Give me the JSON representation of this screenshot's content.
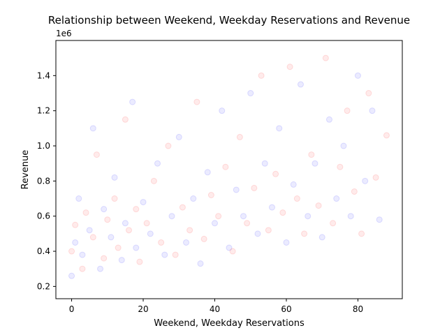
{
  "chart_data": {
    "type": "scatter",
    "title": "Relationship between Weekend, Weekday Reservations and Revenue",
    "xlabel": "Weekend, Weekday Reservations",
    "ylabel": "Revenue",
    "y_offset_label": "1e6",
    "xlim": [
      -4.4,
      92.4
    ],
    "ylim": [
      130000,
      1600000
    ],
    "x_ticks": [
      0,
      20,
      40,
      60,
      80
    ],
    "x_tick_labels": [
      "0",
      "20",
      "40",
      "60",
      "80"
    ],
    "y_ticks": [
      200000,
      400000,
      600000,
      800000,
      1000000,
      1200000,
      1400000
    ],
    "y_tick_labels": [
      "0.2",
      "0.4",
      "0.6",
      "0.8",
      "1.0",
      "1.2",
      "1.4"
    ],
    "grid": false,
    "legend": "none",
    "marker_alpha": 0.08,
    "series": [
      {
        "color": "#0000ff",
        "x": [
          0,
          1,
          2,
          3,
          5,
          6,
          8,
          9,
          11,
          12,
          14,
          15,
          17,
          18,
          20,
          22,
          24,
          26,
          28,
          30,
          32,
          34,
          36,
          38,
          40,
          42,
          44,
          46,
          48,
          50,
          52,
          54,
          56,
          58,
          60,
          62,
          64,
          66,
          68,
          70,
          72,
          74,
          76,
          78,
          80,
          82,
          84,
          86
        ],
        "y": [
          260000,
          450000,
          700000,
          380000,
          520000,
          1100000,
          300000,
          640000,
          480000,
          820000,
          350000,
          560000,
          1250000,
          420000,
          680000,
          500000,
          900000,
          380000,
          600000,
          1050000,
          450000,
          700000,
          330000,
          850000,
          560000,
          1200000,
          420000,
          750000,
          600000,
          1300000,
          500000,
          900000,
          650000,
          1100000,
          450000,
          780000,
          1350000,
          600000,
          900000,
          480000,
          1150000,
          700000,
          1000000,
          600000,
          1400000,
          800000,
          1200000,
          580000
        ]
      },
      {
        "color": "#ff0000",
        "x": [
          0,
          1,
          3,
          4,
          6,
          7,
          9,
          10,
          12,
          13,
          15,
          16,
          18,
          19,
          21,
          23,
          25,
          27,
          29,
          31,
          33,
          35,
          37,
          39,
          41,
          43,
          45,
          47,
          49,
          51,
          53,
          55,
          57,
          59,
          61,
          63,
          65,
          67,
          69,
          71,
          73,
          75,
          77,
          79,
          81,
          83,
          85,
          88
        ],
        "y": [
          400000,
          550000,
          300000,
          620000,
          480000,
          950000,
          360000,
          580000,
          700000,
          420000,
          1150000,
          520000,
          640000,
          340000,
          560000,
          800000,
          450000,
          1000000,
          380000,
          650000,
          520000,
          1250000,
          470000,
          720000,
          600000,
          880000,
          400000,
          1050000,
          560000,
          760000,
          1400000,
          520000,
          840000,
          620000,
          1450000,
          700000,
          500000,
          950000,
          660000,
          1500000,
          560000,
          880000,
          1200000,
          740000,
          500000,
          1300000,
          820000,
          1060000
        ]
      }
    ]
  }
}
